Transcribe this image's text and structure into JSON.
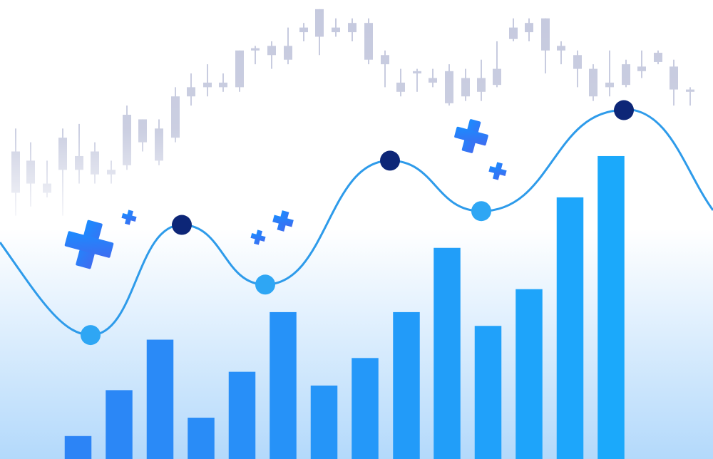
{
  "chart_data": [
    {
      "type": "candlestick",
      "color": "#c5c9de",
      "xlim": [
        0,
        100
      ],
      "ylim": [
        0,
        100
      ],
      "x": [
        2.2,
        4.3,
        6.6,
        8.8,
        11.1,
        13.3,
        15.6,
        17.8,
        20,
        22.3,
        24.6,
        26.8,
        29.1,
        31.3,
        33.6,
        35.8,
        38.1,
        40.4,
        42.6,
        44.8,
        47.1,
        49.4,
        51.7,
        54,
        56.2,
        58.5,
        60.7,
        63,
        65.3,
        67.5,
        69.7,
        72,
        74.2,
        76.5,
        78.7,
        81,
        83.2,
        85.5,
        87.8,
        90,
        92.3,
        94.5,
        96.8
      ],
      "high": [
        72,
        69,
        65,
        72,
        73,
        69,
        65,
        77,
        74,
        74,
        81,
        84,
        86,
        84,
        89,
        90,
        91,
        94,
        95,
        98,
        96,
        96,
        96,
        89,
        85,
        85,
        85,
        86,
        85,
        87,
        91,
        96,
        96,
        96,
        91,
        89,
        86,
        89,
        87,
        89,
        89,
        87,
        81
      ],
      "low": [
        53,
        55,
        57,
        53,
        60,
        60,
        60,
        63,
        67,
        64,
        69,
        77,
        79,
        80,
        80,
        86,
        85,
        86,
        91,
        88,
        92,
        91,
        86,
        81,
        79,
        80,
        81,
        77,
        78,
        78,
        81,
        91,
        91,
        84,
        86,
        81,
        78,
        79,
        81,
        83,
        86,
        77,
        77
      ],
      "open": [
        58,
        60,
        58,
        63,
        63,
        62,
        62,
        64,
        69,
        65,
        70,
        79,
        81,
        81,
        81,
        89,
        88,
        87,
        93,
        92,
        93,
        93,
        87,
        86,
        80,
        84,
        82,
        77.5,
        79,
        80,
        81.5,
        91.5,
        93,
        89,
        89,
        85,
        79,
        81,
        81.5,
        84.5,
        86.5,
        80.5,
        80
      ],
      "close": [
        67,
        65,
        60,
        70,
        66,
        67,
        63,
        75,
        74,
        72,
        79,
        81,
        82,
        82,
        89,
        89.5,
        90,
        90,
        94,
        98,
        94,
        95,
        95,
        88,
        82,
        84.5,
        83,
        84.5,
        83,
        83,
        85,
        94,
        95,
        96,
        90,
        88,
        85,
        82,
        86,
        85.5,
        88.5,
        85.5,
        80.5
      ]
    },
    {
      "type": "bar",
      "xlim": [
        0,
        100
      ],
      "ylim": [
        0,
        100
      ],
      "x": [
        10.95,
        16.7,
        22.45,
        28.2,
        33.95,
        39.7,
        45.45,
        51.2,
        57,
        62.7,
        68.45,
        74.2,
        79.95,
        85.7
      ],
      "values": [
        5,
        15,
        26,
        9,
        19,
        32,
        16,
        22,
        32,
        46,
        29,
        37,
        57,
        66
      ],
      "colors": [
        "#2c84f6",
        "#2b87f6",
        "#2a8af7",
        "#298cf7",
        "#288ff8",
        "#2692f8",
        "#2595f8",
        "#2498f9",
        "#229bf9",
        "#219ef9",
        "#20a1fa",
        "#1ea4fa",
        "#1da6fb",
        "#1ba9fb"
      ]
    },
    {
      "type": "line",
      "color": "#2e9bea",
      "xlim": [
        0,
        100
      ],
      "ylim": [
        0,
        100
      ],
      "x": [
        12.7,
        25.5,
        37.2,
        54.7,
        67.5,
        87.5
      ],
      "values": [
        27,
        51,
        38,
        65,
        54,
        76
      ],
      "marker_colors": [
        "#2ea6f4",
        "#0d2677",
        "#2ea6f4",
        "#0d2677",
        "#2ea6f4",
        "#0d2677"
      ]
    }
  ]
}
